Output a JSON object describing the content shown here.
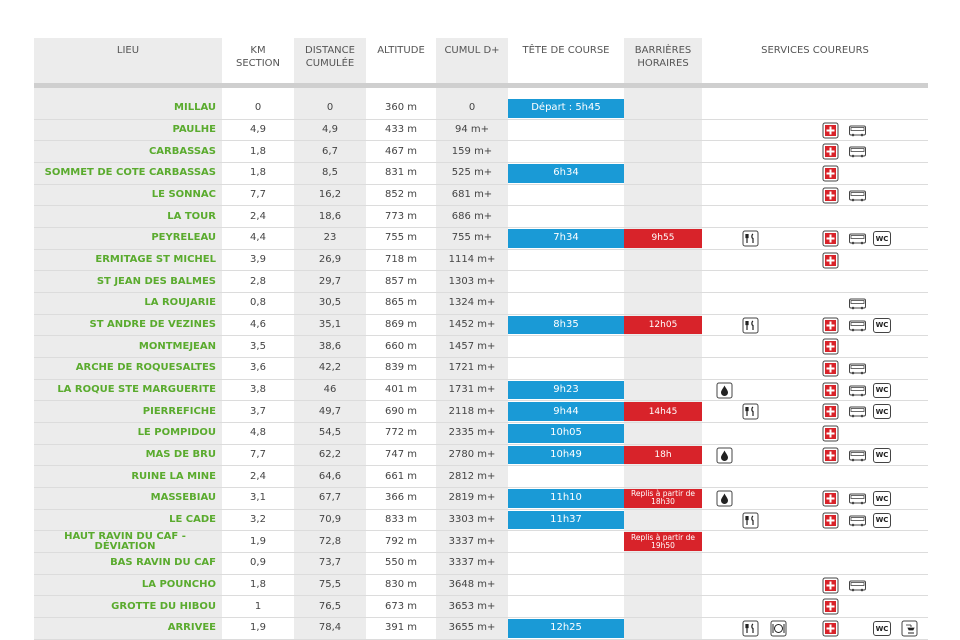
{
  "headers": [
    "LIEU",
    "KM\nSECTION",
    "DISTANCE\nCUMULÉE",
    "ALTITUDE",
    "CUMUL D+",
    "TÊTE DE COURSE",
    "BARRIÈRES\nHORAIRES",
    "SERVICES COUREURS"
  ],
  "wc_label": "WC",
  "rows": [
    [
      "MILLAU",
      "0",
      "0",
      "360 m",
      "0",
      "Départ : 5h45",
      null
    ],
    [
      "PAULHE",
      "4,9",
      "4,9",
      "433 m",
      "94 m+",
      null,
      null
    ],
    [
      "CARBASSAS",
      "1,8",
      "6,7",
      "467 m",
      "159 m+",
      null,
      null
    ],
    [
      "SOMMET DE COTE CARBASSAS",
      "1,8",
      "8,5",
      "831 m",
      "525 m+",
      "6h34",
      null
    ],
    [
      "LE SONNAC",
      "7,7",
      "16,2",
      "852 m",
      "681 m+",
      null,
      null
    ],
    [
      "LA TOUR",
      "2,4",
      "18,6",
      "773 m",
      "686 m+",
      null,
      null
    ],
    [
      "PEYRELEAU",
      "4,4",
      "23",
      "755 m",
      "755 m+",
      "7h34",
      "9h55"
    ],
    [
      "ERMITAGE ST MICHEL",
      "3,9",
      "26,9",
      "718 m",
      "1114 m+",
      null,
      null
    ],
    [
      "ST JEAN DES BALMES",
      "2,8",
      "29,7",
      "857 m",
      "1303 m+",
      null,
      null
    ],
    [
      "LA ROUJARIE",
      "0,8",
      "30,5",
      "865 m",
      "1324 m+",
      null,
      null
    ],
    [
      "ST ANDRE DE VEZINES",
      "4,6",
      "35,1",
      "869 m",
      "1452 m+",
      "8h35",
      "12h05"
    ],
    [
      "MONTMEJEAN",
      "3,5",
      "38,6",
      "660 m",
      "1457 m+",
      null,
      null
    ],
    [
      "ARCHE DE ROQUESALTES",
      "3,6",
      "42,2",
      "839 m",
      "1721 m+",
      null,
      null
    ],
    [
      "LA ROQUE STE MARGUERITE",
      "3,8",
      "46",
      "401 m",
      "1731 m+",
      "9h23",
      null
    ],
    [
      "PIERREFICHE",
      "3,7",
      "49,7",
      "690 m",
      "2118 m+",
      "9h44",
      "14h45"
    ],
    [
      "LE POMPIDOU",
      "4,8",
      "54,5",
      "772 m",
      "2335 m+",
      "10h05",
      null
    ],
    [
      "MAS DE BRU",
      "7,7",
      "62,2",
      "747 m",
      "2780 m+",
      "10h49",
      "18h"
    ],
    [
      "RUINE LA MINE",
      "2,4",
      "64,6",
      "661 m",
      "2812 m+",
      null,
      null
    ],
    [
      "MASSEBIAU",
      "3,1",
      "67,7",
      "366 m",
      "2819 m+",
      "11h10",
      "Replis à partir de\n18h30"
    ],
    [
      "LE CADE",
      "3,2",
      "70,9",
      "833 m",
      "3303 m+",
      "11h37",
      null
    ],
    [
      "HAUT RAVIN DU CAF - DÉVIATION",
      "1,9",
      "72,8",
      "792 m",
      "3337 m+",
      null,
      "Replis à partir de\n19h50"
    ],
    [
      "BAS RAVIN DU CAF",
      "0,9",
      "73,7",
      "550 m",
      "3337 m+",
      null,
      null
    ],
    [
      "LA POUNCHO",
      "1,8",
      "75,5",
      "830 m",
      "3648 m+",
      null,
      null
    ],
    [
      "GROTTE DU HIBOU",
      "1",
      "76,5",
      "673 m",
      "3653 m+",
      null,
      null
    ],
    [
      "ARRIVEE",
      "1,9",
      "78,4",
      "391 m",
      "3655 m+",
      "12h25",
      null
    ]
  ]
}
